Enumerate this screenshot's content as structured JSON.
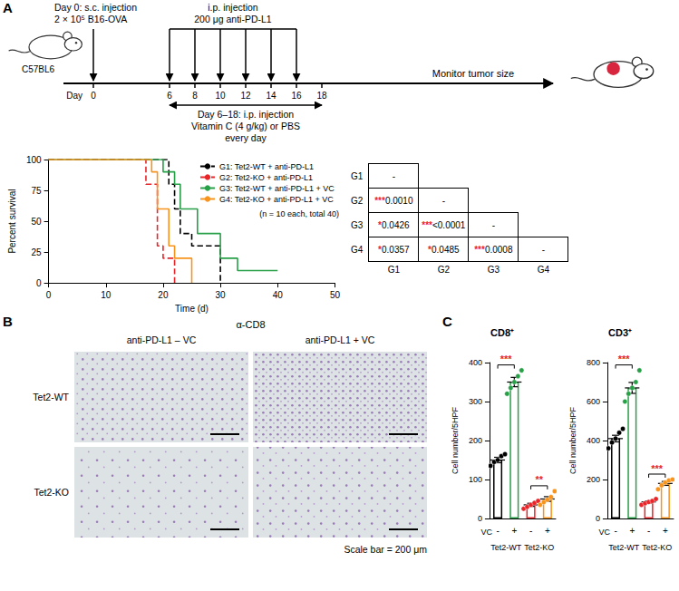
{
  "panel_labels": [
    "A",
    "B",
    "C"
  ],
  "schematic": {
    "mouse_strain": "C57BL6",
    "injection_title": "Day 0: s.c. injection",
    "injection_detail": "2 × 10⁵ B16-OVA",
    "injection_day": 0,
    "antibody_title": "i.p. injection",
    "antibody_detail": "200 μg anti-PD-L1",
    "antibody_days": [
      6,
      8,
      10,
      12,
      14,
      16
    ],
    "axis_label": "Day",
    "days": [
      0,
      6,
      8,
      10,
      12,
      14,
      16,
      18
    ],
    "monitor": "Monitor tumor size",
    "vc_range": [
      6,
      18
    ],
    "vc_lines": [
      "Day 6–18: i.p. injection",
      "Vitamin C (4 g/kg) or PBS",
      "every day"
    ]
  },
  "chart_data": [
    {
      "type": "step",
      "xlabel": "Time (d)",
      "ylabel": "Percent survival",
      "xlim": [
        0,
        50
      ],
      "xticks": [
        0,
        10,
        20,
        30,
        40,
        50
      ],
      "ylim": [
        0,
        100
      ],
      "yticks": [
        0,
        25,
        50,
        75,
        100
      ],
      "grid": false,
      "legend": "upper right",
      "note": "(n = 10 each, total 40)",
      "series": [
        {
          "name": "G1: Tet2-WT + anti-PD-L1",
          "color": "#000000",
          "line_style": "dashed",
          "x": [
            0,
            21,
            22,
            23,
            25,
            30
          ],
          "values": [
            100,
            80,
            60,
            40,
            30,
            0
          ]
        },
        {
          "name": "G2: Tet2-KO + anti-PD-L1",
          "color": "#e8262a",
          "line_style": "dashed",
          "x": [
            0,
            17,
            19,
            20,
            22
          ],
          "values": [
            100,
            80,
            30,
            20,
            0
          ]
        },
        {
          "name": "G3: Tet2-WT + anti-PD-L1 + VC",
          "color": "#27a048",
          "line_style": "solid",
          "x": [
            0,
            20,
            22,
            23,
            26,
            30,
            33,
            40
          ],
          "values": [
            100,
            90,
            80,
            60,
            40,
            20,
            10,
            10
          ]
        },
        {
          "name": "G4: Tet2-KO + anti-PD-L1 + VC",
          "color": "#f7941d",
          "line_style": "solid",
          "x": [
            0,
            18,
            19,
            21,
            22,
            25
          ],
          "values": [
            100,
            90,
            60,
            30,
            20,
            0
          ]
        }
      ]
    },
    {
      "type": "bar",
      "title": "CD8⁺",
      "ylabel": "Cell number/5HPF",
      "categories": [
        "-",
        "+",
        "-",
        "+"
      ],
      "row_label": "VC",
      "groups": [
        "Tet2-WT",
        "Tet2-KO"
      ],
      "values": [
        150,
        350,
        35,
        50
      ],
      "errors": [
        7,
        12,
        4,
        6
      ],
      "points": [
        [
          135,
          145,
          150,
          160,
          165
        ],
        [
          320,
          335,
          350,
          365,
          380
        ],
        [
          25,
          30,
          35,
          40,
          45
        ],
        [
          35,
          42,
          48,
          55,
          70
        ]
      ],
      "colors": [
        "#000000",
        "#27a048",
        "#e8262a",
        "#f7941d"
      ],
      "ylim": [
        0,
        400
      ],
      "yticks": [
        0,
        100,
        200,
        300,
        400
      ],
      "grid": false,
      "comparisons": [
        {
          "pair": [
            0,
            1
          ],
          "label": "***",
          "color": "#e8262a"
        },
        {
          "pair": [
            2,
            3
          ],
          "label": "**",
          "color": "#e8262a"
        }
      ]
    },
    {
      "type": "bar",
      "title": "CD3⁺",
      "ylabel": "Cell number/5HPF",
      "categories": [
        "-",
        "+",
        "-",
        "+"
      ],
      "row_label": "VC",
      "groups": [
        "Tet2-WT",
        "Tet2-KO"
      ],
      "values": [
        410,
        670,
        85,
        180
      ],
      "errors": [
        17,
        28,
        5,
        10
      ],
      "points": [
        [
          360,
          390,
          410,
          440,
          460
        ],
        [
          600,
          640,
          670,
          700,
          760
        ],
        [
          70,
          78,
          85,
          90,
          100
        ],
        [
          150,
          170,
          185,
          195,
          200
        ]
      ],
      "colors": [
        "#000000",
        "#27a048",
        "#e8262a",
        "#f7941d"
      ],
      "ylim": [
        0,
        800
      ],
      "yticks": [
        0,
        200,
        400,
        600,
        800
      ],
      "grid": false,
      "comparisons": [
        {
          "pair": [
            0,
            1
          ],
          "label": "***",
          "color": "#e8262a"
        },
        {
          "pair": [
            2,
            3
          ],
          "label": "***",
          "color": "#e8262a"
        }
      ]
    }
  ],
  "pvalue_table": {
    "headers": [
      "G1",
      "G2",
      "G3",
      "G4"
    ],
    "color": "#e8262a",
    "rows": [
      [
        "-"
      ],
      [
        {
          "stars": "***",
          "p": "0.0010"
        },
        "-"
      ],
      [
        {
          "stars": "*",
          "p": "0.0426"
        },
        {
          "stars": "***",
          "p": "<0.0001"
        },
        "-"
      ],
      [
        {
          "stars": "*",
          "p": "0.0357"
        },
        {
          "stars": "*",
          "p": "0.0485"
        },
        {
          "stars": "***",
          "p": "0.0008"
        },
        "-"
      ]
    ]
  },
  "panel_b": {
    "stain": "α-CD8",
    "columns": [
      "anti-PD-L1 – VC",
      "anti-PD-L1 + VC"
    ],
    "rows": [
      "Tet2-WT",
      "Tet2-KO"
    ],
    "scale_bar": "Scale bar = 200 μm"
  }
}
